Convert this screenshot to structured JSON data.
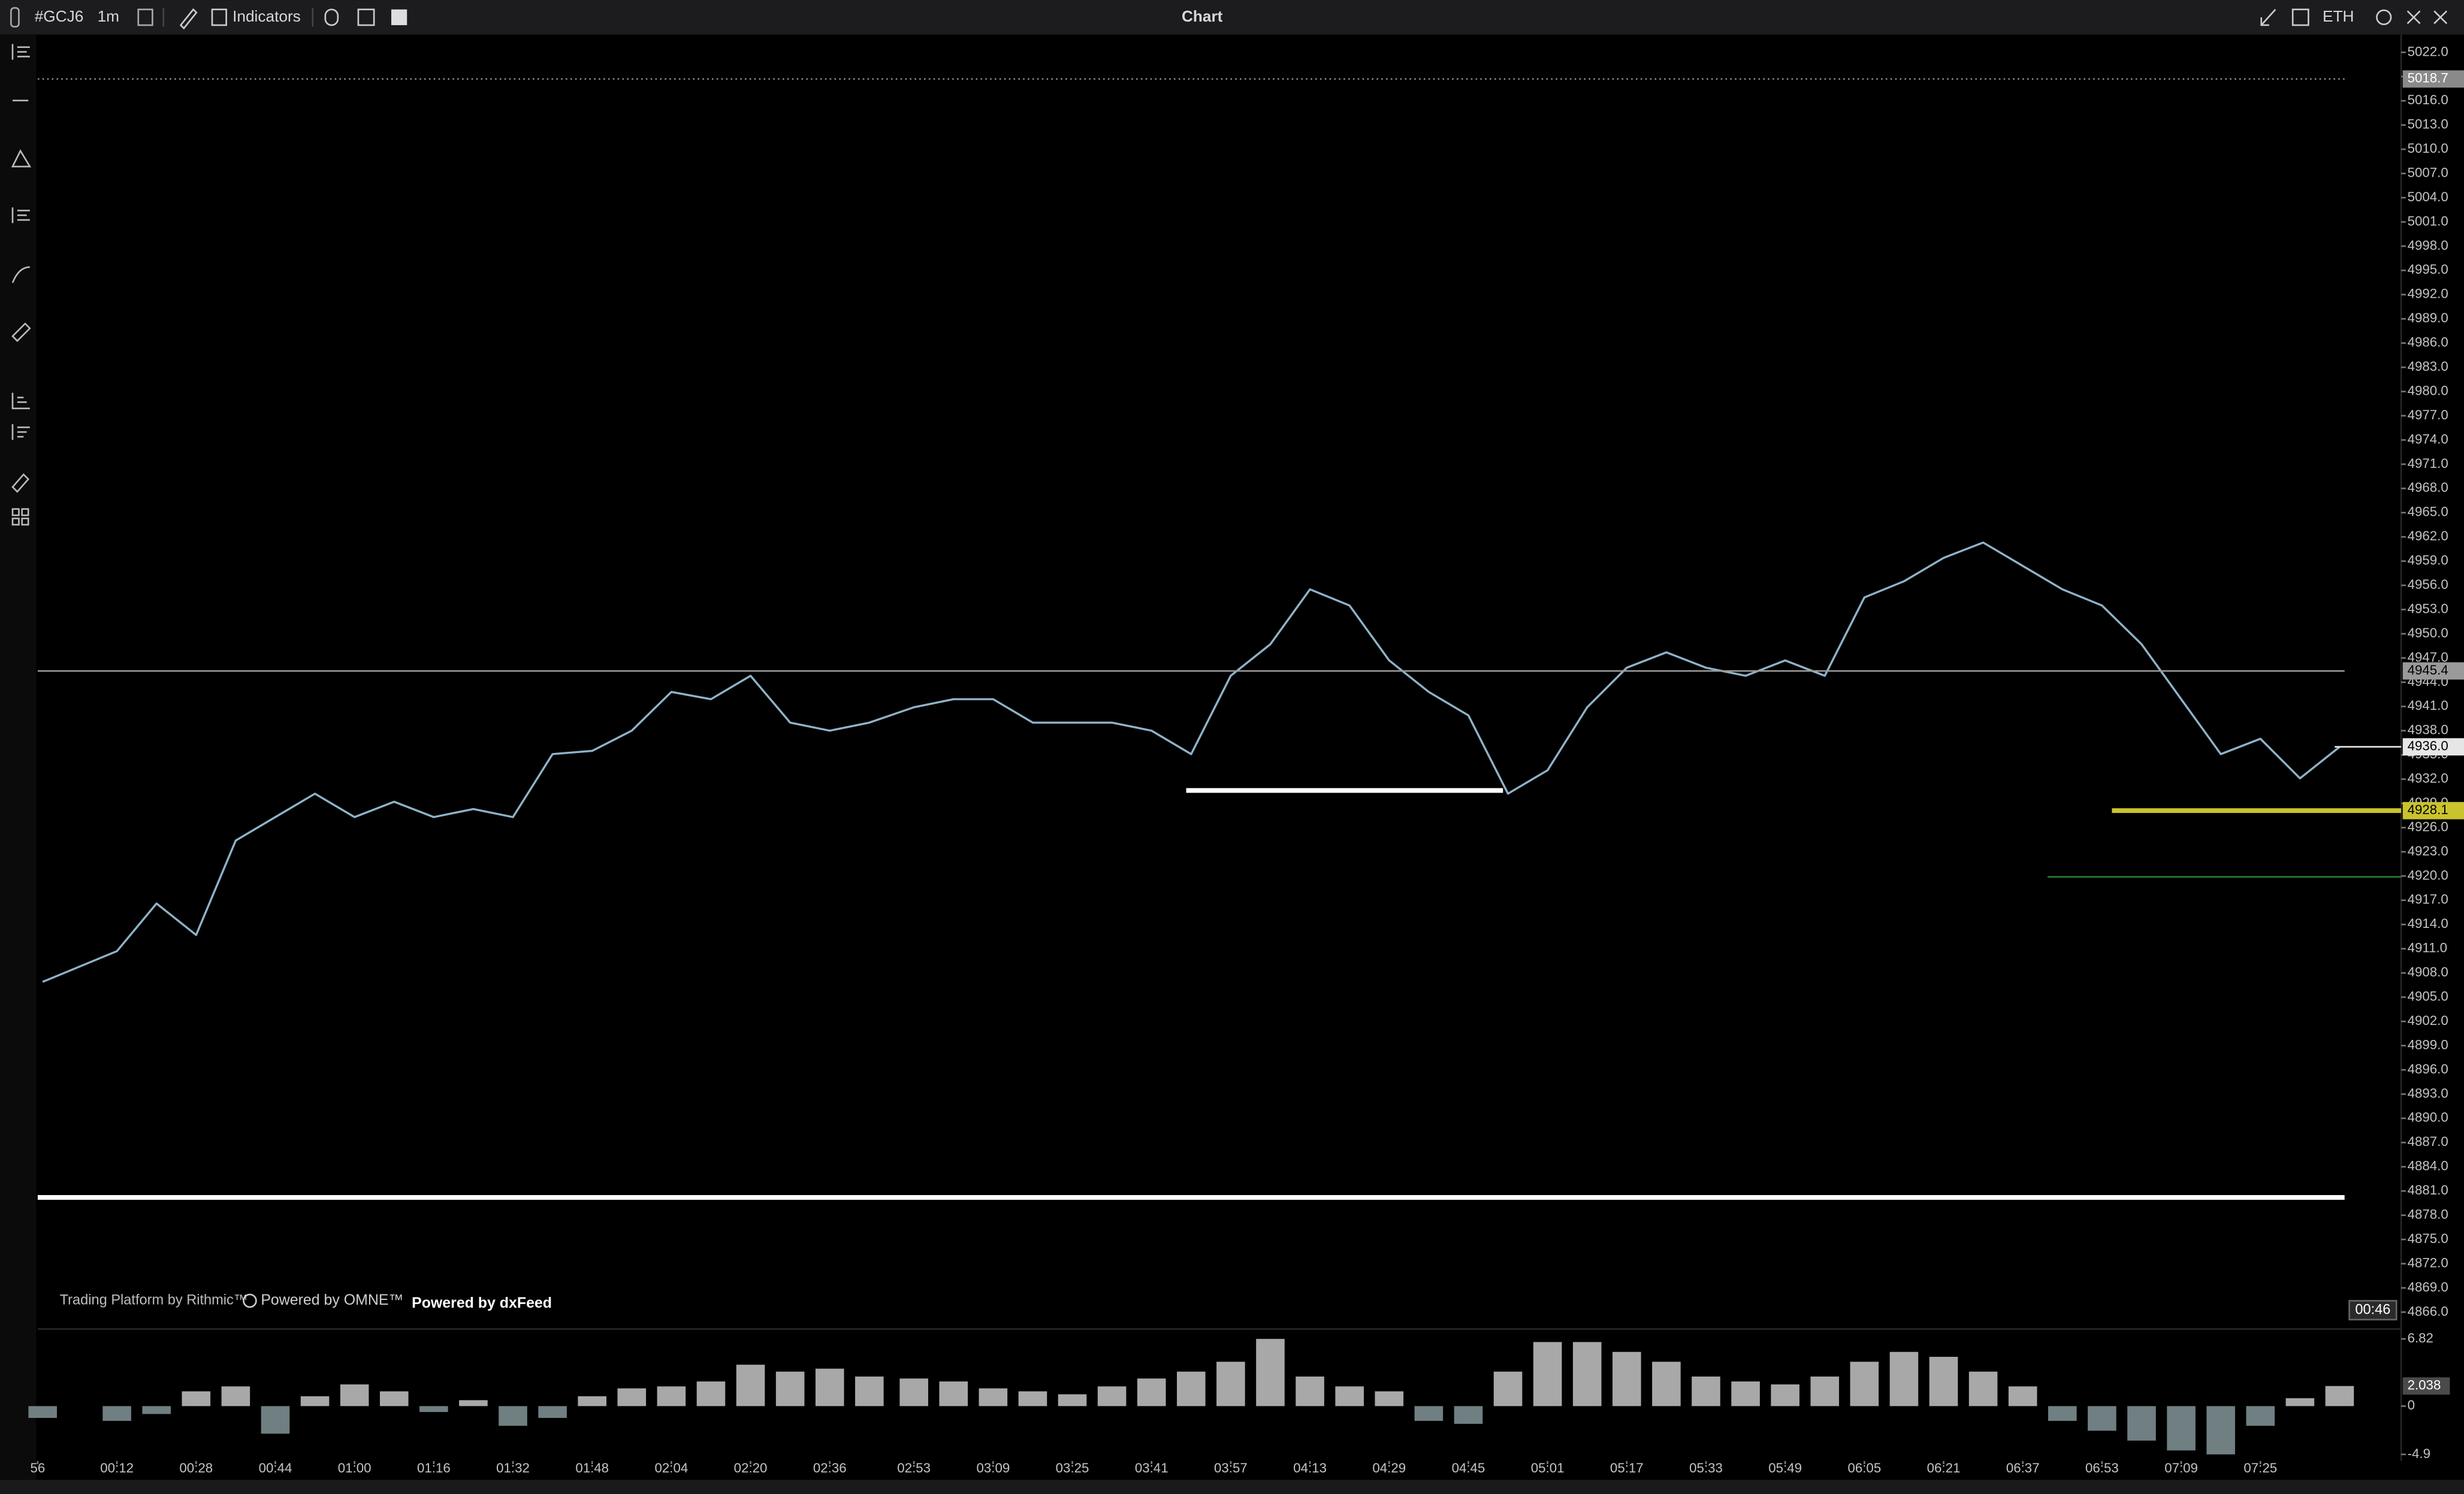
{
  "toolbar": {
    "symbol": "#GCJ6",
    "interval": "1m",
    "indicators": "Indicators",
    "title": "Chart",
    "session": "ETH"
  },
  "branding": {
    "rithmic": "Trading Platform by Rithmic™",
    "omne": "Powered by OMNE™",
    "dxfeed": "Powered by dxFeed"
  },
  "timer": "00:46",
  "chart_data": [
    {
      "type": "line",
      "color": "#8fb3c9",
      "grid": false,
      "x": [
        -3,
        12,
        20,
        28,
        36,
        44,
        52,
        60,
        68,
        76,
        84,
        92,
        100,
        108,
        116,
        124,
        132,
        140,
        148,
        156,
        164,
        173,
        181,
        189,
        197,
        205,
        213,
        221,
        229,
        237,
        245,
        253,
        261,
        269,
        277,
        285,
        293,
        301,
        309,
        317,
        325,
        333,
        341,
        349,
        357,
        365,
        373,
        381,
        389,
        397,
        405,
        413,
        421,
        429,
        437,
        445,
        453,
        461
      ],
      "values": [
        4906.9,
        4910.7,
        4916.6,
        4912.7,
        4924.4,
        4927.3,
        4930.2,
        4927.3,
        4929.2,
        4927.3,
        4928.3,
        4927.3,
        4935.1,
        4935.5,
        4938.0,
        4942.8,
        4941.9,
        4944.8,
        4939.0,
        4938.0,
        4939.0,
        4940.9,
        4941.9,
        4941.9,
        4939.0,
        4939.0,
        4939.0,
        4938.0,
        4935.1,
        4944.8,
        4948.7,
        4955.5,
        4953.5,
        4946.7,
        4942.8,
        4939.9,
        4930.2,
        4933.1,
        4940.9,
        4945.8,
        4947.7,
        4945.8,
        4944.8,
        4946.7,
        4944.8,
        4954.5,
        4956.5,
        4959.4,
        4961.3,
        4958.4,
        4955.5,
        4953.5,
        4948.7,
        4941.9,
        4935.1,
        4937.0,
        4932.1,
        4936.0
      ],
      "xlim": [
        -4,
        462
      ],
      "ylim": [
        4864.1,
        5024.2
      ],
      "xticks": [
        {
          "value": -4,
          "label": "56"
        },
        {
          "value": 12,
          "label": "00:12"
        },
        {
          "value": 28,
          "label": "00:28"
        },
        {
          "value": 44,
          "label": "00:44"
        },
        {
          "value": 60,
          "label": "01:00"
        },
        {
          "value": 76,
          "label": "01:16"
        },
        {
          "value": 92,
          "label": "01:32"
        },
        {
          "value": 108,
          "label": "01:48"
        },
        {
          "value": 124,
          "label": "02:04"
        },
        {
          "value": 140,
          "label": "02:20"
        },
        {
          "value": 156,
          "label": "02:36"
        },
        {
          "value": 173,
          "label": "02:53"
        },
        {
          "value": 189,
          "label": "03:09"
        },
        {
          "value": 205,
          "label": "03:25"
        },
        {
          "value": 221,
          "label": "03:41"
        },
        {
          "value": 237,
          "label": "03:57"
        },
        {
          "value": 253,
          "label": "04:13"
        },
        {
          "value": 269,
          "label": "04:29"
        },
        {
          "value": 285,
          "label": "04:45"
        },
        {
          "value": 301,
          "label": "05:01"
        },
        {
          "value": 317,
          "label": "05:17"
        },
        {
          "value": 333,
          "label": "05:33"
        },
        {
          "value": 349,
          "label": "05:49"
        },
        {
          "value": 365,
          "label": "06:05"
        },
        {
          "value": 381,
          "label": "06:21"
        },
        {
          "value": 397,
          "label": "06:37"
        },
        {
          "value": 413,
          "label": "06:53"
        },
        {
          "value": 429,
          "label": "07:09"
        },
        {
          "value": 445,
          "label": "07:25"
        }
      ],
      "yticks": [
        {
          "value": 4866,
          "label": "4866.0"
        },
        {
          "value": 4869,
          "label": "4869.0"
        },
        {
          "value": 4872,
          "label": "4872.0"
        },
        {
          "value": 4875,
          "label": "4875.0"
        },
        {
          "value": 4878,
          "label": "4878.0"
        },
        {
          "value": 4881,
          "label": "4881.0"
        },
        {
          "value": 4884,
          "label": "4884.0"
        },
        {
          "value": 4887,
          "label": "4887.0"
        },
        {
          "value": 4890,
          "label": "4890.0"
        },
        {
          "value": 4893,
          "label": "4893.0"
        },
        {
          "value": 4896,
          "label": "4896.0"
        },
        {
          "value": 4899,
          "label": "4899.0"
        },
        {
          "value": 4902,
          "label": "4902.0"
        },
        {
          "value": 4905,
          "label": "4905.0"
        },
        {
          "value": 4908,
          "label": "4908.0"
        },
        {
          "value": 4911,
          "label": "4911.0"
        },
        {
          "value": 4914,
          "label": "4914.0"
        },
        {
          "value": 4917,
          "label": "4917.0"
        },
        {
          "value": 4920,
          "label": "4920.0"
        },
        {
          "value": 4923,
          "label": "4923.0"
        },
        {
          "value": 4926,
          "label": "4926.0"
        },
        {
          "value": 4929,
          "label": "4929.0"
        },
        {
          "value": 4932,
          "label": "4932.0"
        },
        {
          "value": 4935,
          "label": "4935.0"
        },
        {
          "value": 4938,
          "label": "4938.0"
        },
        {
          "value": 4941,
          "label": "4941.0"
        },
        {
          "value": 4944,
          "label": "4944.0"
        },
        {
          "value": 4947,
          "label": "4947.0"
        },
        {
          "value": 4950,
          "label": "4950.0"
        },
        {
          "value": 4953,
          "label": "4953.0"
        },
        {
          "value": 4956,
          "label": "4956.0"
        },
        {
          "value": 4959,
          "label": "4959.0"
        },
        {
          "value": 4962,
          "label": "4962.0"
        },
        {
          "value": 4965,
          "label": "4965.0"
        },
        {
          "value": 4968,
          "label": "4968.0"
        },
        {
          "value": 4971,
          "label": "4971.0"
        },
        {
          "value": 4974,
          "label": "4974.0"
        },
        {
          "value": 4977,
          "label": "4977.0"
        },
        {
          "value": 4980,
          "label": "4980.0"
        },
        {
          "value": 4983,
          "label": "4983.0"
        },
        {
          "value": 4986,
          "label": "4986.0"
        },
        {
          "value": 4989,
          "label": "4989.0"
        },
        {
          "value": 4992,
          "label": "4992.0"
        },
        {
          "value": 4995,
          "label": "4995.0"
        },
        {
          "value": 4998,
          "label": "4998.0"
        },
        {
          "value": 5001,
          "label": "5001.0"
        },
        {
          "value": 5004,
          "label": "5004.0"
        },
        {
          "value": 5007,
          "label": "5007.0"
        },
        {
          "value": 5010,
          "label": "5010.0"
        },
        {
          "value": 5013,
          "label": "5013.0"
        },
        {
          "value": 5016,
          "label": "5016.0"
        },
        {
          "value": 5019,
          "label": "5019.0"
        },
        {
          "value": 5022,
          "label": "5022.0"
        }
      ],
      "levels": [
        {
          "value": 5018.7,
          "label": "5018.7",
          "color": "#8a8a8a",
          "style": "dotted"
        },
        {
          "value": 4945.4,
          "label": "4945.4",
          "color": "#9a9a9a"
        },
        {
          "value": 4936.0,
          "label": "4936.0",
          "color": "#e6e6e6",
          "from": 460
        },
        {
          "value": 4928.1,
          "label": "4928.1",
          "color": "#c9c42e",
          "style": "thick",
          "from": 415
        },
        {
          "value": 4919.9,
          "color": "#2e7d32",
          "from": 402
        },
        {
          "value": 4880.2,
          "color": "#ffffff",
          "style": "thick"
        },
        {
          "value": 4930.6,
          "color": "#ffffff",
          "style": "thick",
          "from": 228,
          "to": 292
        }
      ]
    },
    {
      "type": "bar",
      "color": "#a8a8a8",
      "negative_color": "#6f7f82",
      "values": [
        -1.2,
        -1.5,
        -0.8,
        1.5,
        2.0,
        -2.8,
        1.0,
        2.2,
        1.5,
        -0.6,
        0.6,
        -2.0,
        -1.2,
        1.0,
        1.8,
        2.0,
        2.5,
        4.2,
        3.5,
        3.8,
        3.0,
        2.8,
        2.5,
        1.8,
        1.5,
        1.2,
        2.0,
        2.8,
        3.5,
        4.5,
        6.82,
        3.0,
        2.0,
        1.5,
        -1.5,
        -1.8,
        3.5,
        6.5,
        6.5,
        5.5,
        4.5,
        3.0,
        2.5,
        2.2,
        3.0,
        4.5,
        5.5,
        5.0,
        3.5,
        2.0,
        -1.5,
        -2.5,
        -3.5,
        -4.5,
        -4.9,
        -2.0,
        0.8,
        2.038
      ],
      "ylim": [
        -5.57,
        7.82
      ],
      "yticks": [
        6.82,
        0,
        -4.9
      ]
    }
  ]
}
